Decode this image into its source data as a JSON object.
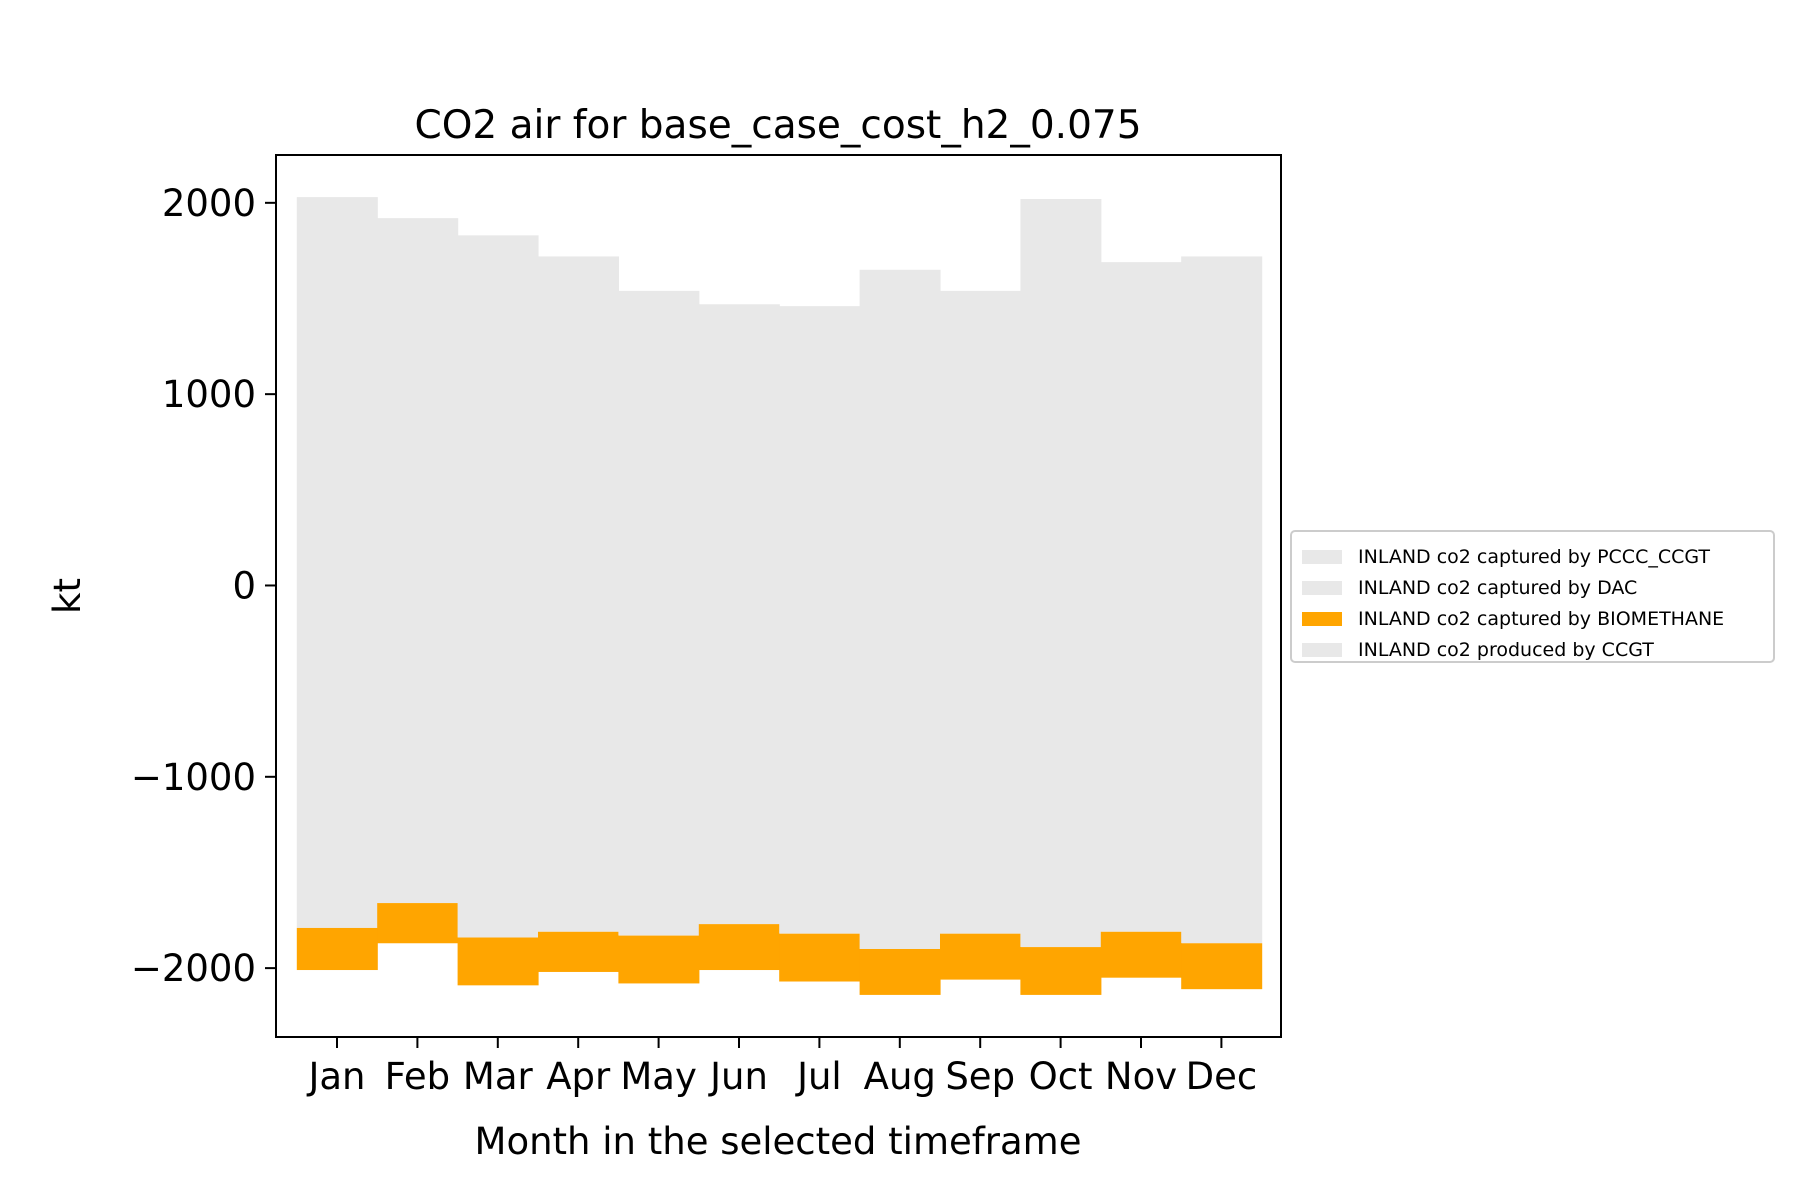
{
  "chart_data": {
    "type": "area",
    "title": "CO2 air for base_case_cost_h2_0.075",
    "xlabel": "Month in the selected timeframe",
    "ylabel": "kt",
    "categories": [
      "Jan",
      "Feb",
      "Mar",
      "Apr",
      "May",
      "Jun",
      "Jul",
      "Aug",
      "Sep",
      "Oct",
      "Nov",
      "Dec"
    ],
    "ylim": [
      -2360,
      2250
    ],
    "yticks": [
      2000,
      1000,
      0,
      -1000,
      -2000
    ],
    "ytick_labels": [
      "2000",
      "1000",
      "0",
      "−1000",
      "−2000"
    ],
    "grid": false,
    "legend_position": "right",
    "series": [
      {
        "name": "INLAND co2 captured by PCCC_CCGT",
        "color": "#e8e8e8",
        "values": [
          0,
          0,
          0,
          0,
          0,
          0,
          0,
          0,
          0,
          0,
          0,
          0
        ]
      },
      {
        "name": "INLAND co2 captured by DAC",
        "color": "#e8e8e8",
        "values": [
          0,
          0,
          0,
          0,
          0,
          0,
          0,
          0,
          0,
          0,
          0,
          0
        ]
      },
      {
        "name": "INLAND co2 captured by BIOMETHANE",
        "color": "#ffa500",
        "values": [
          -220,
          -210,
          -250,
          -210,
          -250,
          -240,
          -250,
          -240,
          -240,
          -250,
          -240,
          -240
        ]
      },
      {
        "name": "INLAND co2 produced by CCGT",
        "color": "#e8e8e8",
        "values": [
          3820,
          3580,
          3670,
          3530,
          3370,
          3240,
          3280,
          3550,
          3360,
          3910,
          3500,
          3590
        ]
      }
    ],
    "lower_bound": [
      -1790,
      -1660,
      -1840,
      -1810,
      -1830,
      -1770,
      -1820,
      -1900,
      -1820,
      -1890,
      -1810,
      -1870
    ],
    "upper_bound": [
      2030,
      1920,
      1830,
      1720,
      1540,
      1470,
      1460,
      1650,
      1540,
      2020,
      1690,
      1720
    ]
  }
}
